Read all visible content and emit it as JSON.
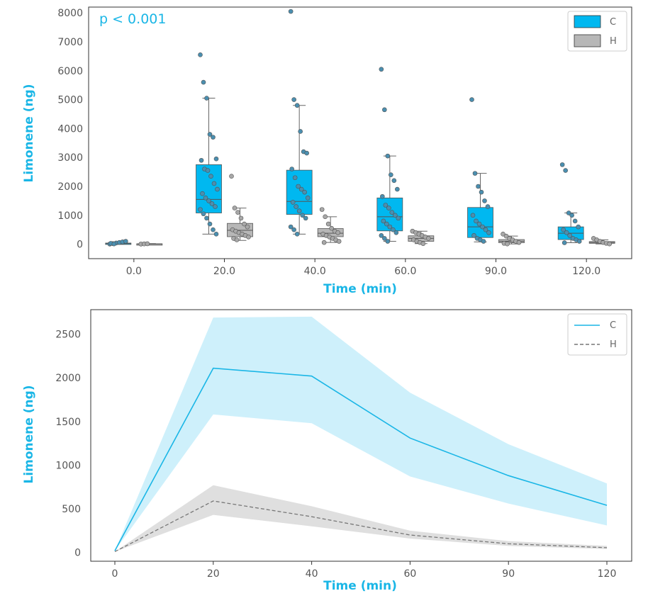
{
  "colors": {
    "C": "#00b8f0",
    "H": "#b7b7b7",
    "label": "#1ab6e6",
    "dot": "#4a8fb0"
  },
  "chart_data": [
    {
      "type": "box",
      "xlabel": "Time (min)",
      "ylabel": "Limonene (ng)",
      "annotation": "p < 0.001",
      "ylim": [
        -500,
        8200
      ],
      "yticks": [
        0,
        1000,
        2000,
        3000,
        4000,
        5000,
        6000,
        7000,
        8000
      ],
      "categories": [
        "0.0",
        "20.0",
        "40.0",
        "60.0",
        "90.0",
        "120.0"
      ],
      "legend": {
        "position": "top-right",
        "entries": [
          "C",
          "H"
        ]
      },
      "series": [
        {
          "name": "C",
          "boxes": [
            {
              "whislo": 0,
              "q1": 10,
              "med": 20,
              "q3": 40,
              "whishi": 80,
              "points": [
                5,
                20,
                40,
                60,
                80,
                100,
                30,
                10
              ]
            },
            {
              "whislo": 350,
              "q1": 1080,
              "med": 1550,
              "q3": 2750,
              "whishi": 5050,
              "points": [
                6550,
                5600,
                5050,
                3800,
                3700,
                2950,
                2900,
                2600,
                2550,
                2350,
                2100,
                1900,
                1750,
                1600,
                1500,
                1400,
                1300,
                1200,
                1050,
                900,
                700,
                500,
                350
              ]
            },
            {
              "whislo": 350,
              "q1": 1030,
              "med": 1480,
              "q3": 2560,
              "whishi": 4800,
              "points": [
                8050,
                5000,
                4800,
                3900,
                3200,
                3150,
                2600,
                2300,
                2000,
                1900,
                1800,
                1600,
                1450,
                1300,
                1150,
                1000,
                900,
                600,
                500,
                350
              ]
            },
            {
              "whislo": 100,
              "q1": 460,
              "med": 950,
              "q3": 1600,
              "whishi": 3050,
              "points": [
                6050,
                4650,
                3050,
                2400,
                2200,
                1900,
                1650,
                1350,
                1250,
                1100,
                1000,
                900,
                800,
                700,
                600,
                500,
                400,
                300,
                200,
                100
              ]
            },
            {
              "whislo": 80,
              "q1": 230,
              "med": 600,
              "q3": 1270,
              "whishi": 2450,
              "points": [
                5000,
                2450,
                2000,
                1800,
                1500,
                1300,
                1000,
                800,
                700,
                600,
                500,
                400,
                300,
                200,
                150,
                100
              ]
            },
            {
              "whislo": 50,
              "q1": 160,
              "med": 380,
              "q3": 600,
              "whishi": 1080,
              "points": [
                2750,
                2550,
                1080,
                1000,
                800,
                600,
                500,
                400,
                300,
                200,
                150,
                100,
                50
              ]
            }
          ]
        },
        {
          "name": "H",
          "boxes": [
            {
              "whislo": 0,
              "q1": 5,
              "med": 10,
              "q3": 15,
              "whishi": 20,
              "points": [
                5,
                10,
                15
              ]
            },
            {
              "whislo": 130,
              "q1": 260,
              "med": 480,
              "q3": 720,
              "whishi": 1250,
              "points": [
                2350,
                1250,
                1100,
                900,
                700,
                600,
                500,
                450,
                400,
                350,
                300,
                250,
                200,
                150
              ]
            },
            {
              "whislo": 60,
              "q1": 260,
              "med": 380,
              "q3": 540,
              "whishi": 950,
              "points": [
                1200,
                950,
                700,
                550,
                450,
                400,
                350,
                300,
                250,
                200,
                150,
                100,
                60
              ]
            },
            {
              "whislo": 20,
              "q1": 100,
              "med": 200,
              "q3": 290,
              "whishi": 450,
              "points": [
                450,
                400,
                350,
                300,
                250,
                200,
                150,
                100,
                60,
                20
              ]
            },
            {
              "whislo": 10,
              "q1": 50,
              "med": 100,
              "q3": 160,
              "whishi": 280,
              "points": [
                350,
                280,
                200,
                150,
                100,
                60,
                30,
                10
              ]
            },
            {
              "whislo": 10,
              "q1": 30,
              "med": 60,
              "q3": 90,
              "whishi": 150,
              "points": [
                200,
                150,
                100,
                60,
                30,
                10
              ]
            }
          ]
        }
      ]
    },
    {
      "type": "line",
      "xlabel": "Time (min)",
      "ylabel": "Limonene (ng)",
      "xticks": [
        "0",
        "20",
        "40",
        "60",
        "90",
        "120"
      ],
      "ylim": [
        -100,
        2780
      ],
      "yticks": [
        0,
        500,
        1000,
        1500,
        2000,
        2500
      ],
      "legend": {
        "position": "top-right",
        "entries": [
          "C",
          "H"
        ]
      },
      "series": [
        {
          "name": "C",
          "x": [
            0,
            20,
            40,
            60,
            90,
            120
          ],
          "values": [
            20,
            2110,
            2020,
            1310,
            880,
            540
          ],
          "lower": [
            20,
            1580,
            1480,
            870,
            560,
            310
          ],
          "upper": [
            20,
            2690,
            2700,
            1830,
            1240,
            790
          ]
        },
        {
          "name": "H",
          "x": [
            0,
            20,
            40,
            60,
            90,
            120
          ],
          "values": [
            10,
            590,
            410,
            200,
            100,
            55
          ],
          "lower": [
            10,
            430,
            300,
            160,
            75,
            40
          ],
          "upper": [
            10,
            770,
            530,
            250,
            130,
            75
          ]
        }
      ]
    }
  ]
}
